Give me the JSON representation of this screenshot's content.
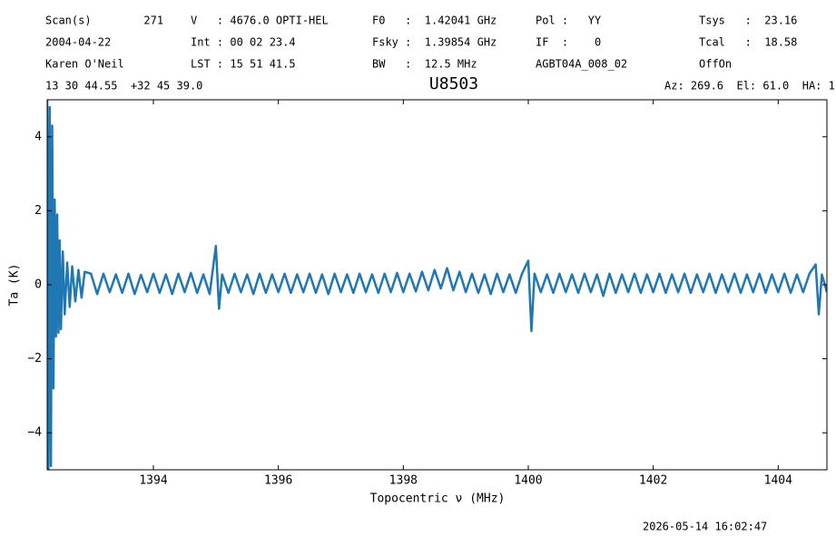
{
  "chart_data": {
    "type": "line",
    "title": "U8503",
    "header": [
      [
        "Scan(s)        271",
        "V   : 4676.0 OPTI-HEL",
        "F0   :  1.42041 GHz",
        "Pol :   YY",
        "Tsys   :  23.16"
      ],
      [
        "2004-04-22",
        "Int : 00 02 23.4",
        "Fsky :  1.39854 GHz",
        "IF  :    0",
        "Tcal   :  18.58"
      ],
      [
        "Karen O'Neil",
        "LST : 15 51 41.5",
        "BW   :  12.5 MHz",
        "AGBT04A_008_02",
        "OffOn"
      ]
    ],
    "coords": "13 30 44.55  +32 45 39.0",
    "pointing": "Az: 269.6  El: 61.0  HA: 1",
    "timestamp": "2026-05-14 16:02:47",
    "xlabel": "Topocentric ν (MHz)",
    "ylabel": "Ta (K)",
    "xlim": [
      1392.3,
      1404.78
    ],
    "ylim": [
      -5,
      5
    ],
    "xticks": [
      1394,
      1396,
      1398,
      1400,
      1402,
      1404
    ],
    "yticks": [
      {
        "value": -4,
        "label": "−4"
      },
      {
        "value": -2,
        "label": "−2"
      },
      0,
      2,
      4
    ],
    "series": [
      {
        "name": "Ta",
        "color": "#1f77b4",
        "x": [
          1392.3,
          1392.32,
          1392.34,
          1392.36,
          1392.38,
          1392.4,
          1392.42,
          1392.44,
          1392.46,
          1392.48,
          1392.5,
          1392.52,
          1392.55,
          1392.58,
          1392.62,
          1392.66,
          1392.7,
          1392.75,
          1392.8,
          1392.85,
          1392.9,
          1393.0,
          1393.1,
          1393.2,
          1393.3,
          1393.4,
          1393.5,
          1393.6,
          1393.7,
          1393.8,
          1393.9,
          1394.0,
          1394.1,
          1394.2,
          1394.3,
          1394.4,
          1394.5,
          1394.6,
          1394.7,
          1394.8,
          1394.9,
          1395.0,
          1395.05,
          1395.1,
          1395.2,
          1395.3,
          1395.4,
          1395.5,
          1395.6,
          1395.7,
          1395.8,
          1395.9,
          1396.0,
          1396.1,
          1396.2,
          1396.3,
          1396.4,
          1396.5,
          1396.6,
          1396.7,
          1396.8,
          1396.9,
          1397.0,
          1397.1,
          1397.2,
          1397.3,
          1397.4,
          1397.5,
          1397.6,
          1397.7,
          1397.8,
          1397.9,
          1398.0,
          1398.1,
          1398.2,
          1398.3,
          1398.4,
          1398.5,
          1398.6,
          1398.7,
          1398.8,
          1398.9,
          1399.0,
          1399.1,
          1399.2,
          1399.3,
          1399.4,
          1399.5,
          1399.6,
          1399.7,
          1399.8,
          1399.9,
          1400.0,
          1400.05,
          1400.1,
          1400.2,
          1400.3,
          1400.4,
          1400.5,
          1400.6,
          1400.7,
          1400.8,
          1400.9,
          1401.0,
          1401.1,
          1401.2,
          1401.3,
          1401.4,
          1401.5,
          1401.6,
          1401.7,
          1401.8,
          1401.9,
          1402.0,
          1402.1,
          1402.2,
          1402.3,
          1402.4,
          1402.5,
          1402.6,
          1402.7,
          1402.8,
          1402.9,
          1403.0,
          1403.1,
          1403.2,
          1403.3,
          1403.4,
          1403.5,
          1403.6,
          1403.7,
          1403.8,
          1403.9,
          1404.0,
          1404.1,
          1404.2,
          1404.3,
          1404.4,
          1404.5,
          1404.6,
          1404.65,
          1404.7,
          1404.78
        ],
        "values": [
          5,
          -5,
          4.8,
          -4.9,
          4.3,
          -2.8,
          2.3,
          -1.4,
          1.9,
          -1.3,
          1.2,
          -1.2,
          0.9,
          -0.8,
          0.6,
          -0.6,
          0.5,
          -0.45,
          0.4,
          -0.35,
          0.35,
          0.3,
          -0.25,
          0.3,
          -0.2,
          0.28,
          -0.22,
          0.3,
          -0.25,
          0.27,
          -0.2,
          0.3,
          -0.22,
          0.28,
          -0.25,
          0.3,
          -0.2,
          0.32,
          -0.22,
          0.28,
          -0.25,
          1.05,
          -0.65,
          0.28,
          -0.22,
          0.3,
          -0.2,
          0.28,
          -0.25,
          0.3,
          -0.22,
          0.28,
          -0.2,
          0.3,
          -0.22,
          0.28,
          -0.2,
          0.3,
          -0.22,
          0.28,
          -0.25,
          0.3,
          -0.2,
          0.28,
          -0.22,
          0.3,
          -0.2,
          0.28,
          -0.22,
          0.3,
          -0.2,
          0.32,
          -0.2,
          0.3,
          -0.18,
          0.35,
          -0.15,
          0.4,
          -0.1,
          0.45,
          -0.15,
          0.35,
          -0.2,
          0.3,
          -0.22,
          0.28,
          -0.25,
          0.3,
          -0.2,
          0.28,
          -0.22,
          0.3,
          0.65,
          -1.25,
          0.3,
          -0.2,
          0.28,
          -0.22,
          0.3,
          -0.2,
          0.28,
          -0.22,
          0.3,
          -0.2,
          0.28,
          -0.3,
          0.3,
          -0.22,
          0.28,
          -0.2,
          0.3,
          -0.22,
          0.28,
          -0.2,
          0.3,
          -0.22,
          0.28,
          -0.2,
          0.3,
          -0.22,
          0.28,
          -0.2,
          0.3,
          -0.22,
          0.28,
          -0.2,
          0.3,
          -0.22,
          0.28,
          -0.2,
          0.3,
          -0.22,
          0.28,
          -0.2,
          0.3,
          -0.22,
          0.28,
          -0.2,
          0.3,
          0.55,
          -0.8,
          0.28,
          -0.2
        ]
      }
    ]
  }
}
